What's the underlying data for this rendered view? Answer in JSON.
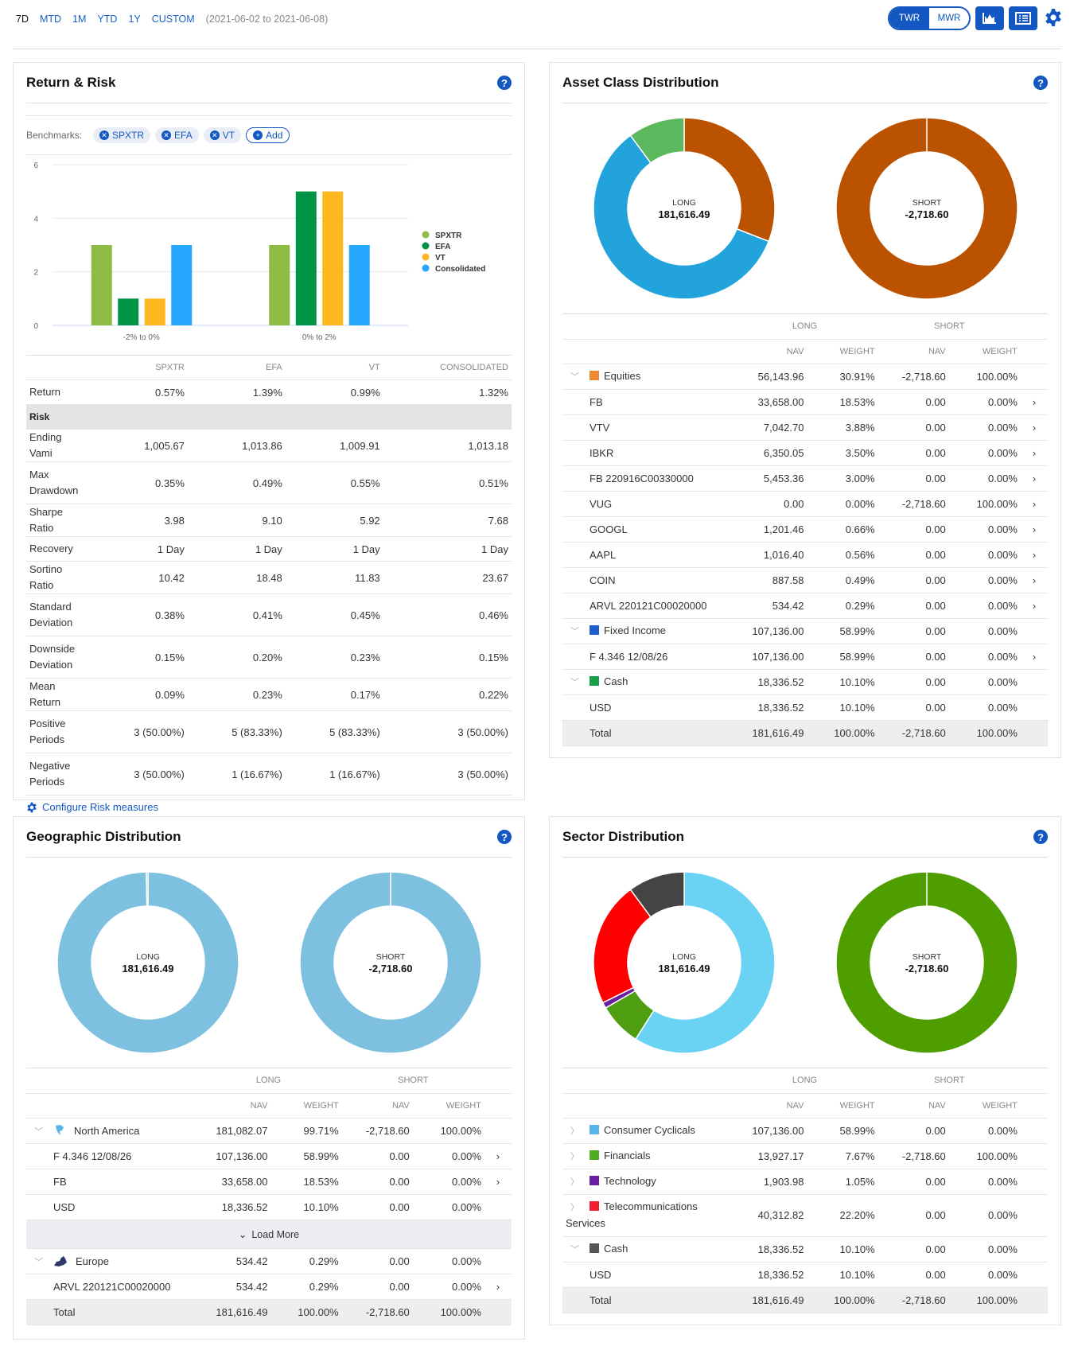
{
  "topbar": {
    "periods": [
      "7D",
      "MTD",
      "1M",
      "YTD",
      "1Y",
      "CUSTOM"
    ],
    "active": "7D",
    "range": "(2021-06-02 to 2021-06-08)",
    "twr": "TWR",
    "mwr": "MWR",
    "selected_mode": "TWR"
  },
  "colors": {
    "accent": "#1357c2"
  },
  "return_risk": {
    "title": "Return & Risk",
    "benchmarks_label": "Benchmarks:",
    "benchmarks": [
      "SPXTR",
      "EFA",
      "VT"
    ],
    "add_label": "Add",
    "configure_label": "Configure Risk measures",
    "columns": [
      "SPXTR",
      "EFA",
      "VT",
      "CONSOLIDATED"
    ],
    "rows": [
      {
        "label": "Return",
        "values": [
          "0.57%",
          "1.39%",
          "0.99%",
          "1.32%"
        ]
      },
      {
        "label": "Risk",
        "section": true
      },
      {
        "label": "Ending Vami",
        "values": [
          "1,005.67",
          "1,013.86",
          "1,009.91",
          "1,013.18"
        ]
      },
      {
        "label": "Max Drawdown",
        "values": [
          "0.35%",
          "0.49%",
          "0.55%",
          "0.51%"
        ],
        "tall": true
      },
      {
        "label": "Sharpe Ratio",
        "values": [
          "3.98",
          "9.10",
          "5.92",
          "7.68"
        ]
      },
      {
        "label": "Recovery",
        "values": [
          "1 Day",
          "1 Day",
          "1 Day",
          "1 Day"
        ]
      },
      {
        "label": "Sortino Ratio",
        "values": [
          "10.42",
          "18.48",
          "11.83",
          "23.67"
        ]
      },
      {
        "label": "Standard Deviation",
        "values": [
          "0.38%",
          "0.41%",
          "0.45%",
          "0.46%"
        ],
        "tall": true
      },
      {
        "label": "Downside Deviation",
        "values": [
          "0.15%",
          "0.20%",
          "0.23%",
          "0.15%"
        ],
        "tall": true
      },
      {
        "label": "Mean Return",
        "values": [
          "0.09%",
          "0.23%",
          "0.17%",
          "0.22%"
        ]
      },
      {
        "label": "Positive Periods",
        "values": [
          "3 (50.00%)",
          "5 (83.33%)",
          "5 (83.33%)",
          "3 (50.00%)"
        ],
        "tall": true
      },
      {
        "label": "Negative Periods",
        "values": [
          "3 (50.00%)",
          "1 (16.67%)",
          "1 (16.67%)",
          "3 (50.00%)"
        ],
        "tall": true
      }
    ]
  },
  "chart_data": {
    "type": "bar",
    "categories": [
      "-2% to 0%",
      "0% to 2%"
    ],
    "ylim": [
      0,
      6
    ],
    "yticks": [
      0,
      2,
      4,
      6
    ],
    "grid": true,
    "legend": "right",
    "series": [
      {
        "name": "SPXTR",
        "color": "#8fba44",
        "values": [
          3,
          3
        ]
      },
      {
        "name": "EFA",
        "color": "#009245",
        "values": [
          1,
          5
        ]
      },
      {
        "name": "VT",
        "color": "#fdb71f",
        "values": [
          1,
          5
        ]
      },
      {
        "name": "Consolidated",
        "color": "#26a6fc",
        "values": [
          3,
          3
        ]
      }
    ]
  },
  "dist_headers": {
    "long": "LONG",
    "short": "SHORT",
    "nav": "NAV",
    "weight": "WEIGHT"
  },
  "asset_class": {
    "title": "Asset Class Distribution",
    "long_donut": {
      "label": "LONG",
      "value": "181,616.49",
      "slices": [
        {
          "pct": 30.91,
          "color": "#bb5200"
        },
        {
          "pct": 58.99,
          "color": "#23a3dc"
        },
        {
          "pct": 10.1,
          "color": "#5cb85c"
        }
      ]
    },
    "short_donut": {
      "label": "SHORT",
      "value": "-2,718.60",
      "slices": [
        {
          "pct": 100,
          "color": "#bb5200"
        }
      ]
    },
    "rows": [
      {
        "type": "group",
        "open": true,
        "name": "Equities",
        "color": "#f08a30",
        "v": [
          "56,143.96",
          "30.91%",
          "-2,718.60",
          "100.00%"
        ]
      },
      {
        "type": "child",
        "name": "FB",
        "v": [
          "33,658.00",
          "18.53%",
          "0.00",
          "0.00%"
        ],
        "arrow": true
      },
      {
        "type": "child",
        "name": "VTV",
        "v": [
          "7,042.70",
          "3.88%",
          "0.00",
          "0.00%"
        ],
        "arrow": true
      },
      {
        "type": "child",
        "name": "IBKR",
        "v": [
          "6,350.05",
          "3.50%",
          "0.00",
          "0.00%"
        ],
        "arrow": true
      },
      {
        "type": "child",
        "name": "FB 220916C00330000",
        "v": [
          "5,453.36",
          "3.00%",
          "0.00",
          "0.00%"
        ],
        "arrow": true
      },
      {
        "type": "child",
        "name": "VUG",
        "v": [
          "0.00",
          "0.00%",
          "-2,718.60",
          "100.00%"
        ],
        "arrow": true
      },
      {
        "type": "child",
        "name": "GOOGL",
        "v": [
          "1,201.46",
          "0.66%",
          "0.00",
          "0.00%"
        ],
        "arrow": true
      },
      {
        "type": "child",
        "name": "AAPL",
        "v": [
          "1,016.40",
          "0.56%",
          "0.00",
          "0.00%"
        ],
        "arrow": true
      },
      {
        "type": "child",
        "name": "COIN",
        "v": [
          "887.58",
          "0.49%",
          "0.00",
          "0.00%"
        ],
        "arrow": true
      },
      {
        "type": "child",
        "name": "ARVL 220121C00020000",
        "v": [
          "534.42",
          "0.29%",
          "0.00",
          "0.00%"
        ],
        "arrow": true
      },
      {
        "type": "group",
        "open": true,
        "name": "Fixed Income",
        "color": "#1f5fcc",
        "v": [
          "107,136.00",
          "58.99%",
          "0.00",
          "0.00%"
        ]
      },
      {
        "type": "child",
        "name": "F 4.346 12/08/26",
        "v": [
          "107,136.00",
          "58.99%",
          "0.00",
          "0.00%"
        ],
        "arrow": true
      },
      {
        "type": "group",
        "open": true,
        "name": "Cash",
        "color": "#1a9e4a",
        "v": [
          "18,336.52",
          "10.10%",
          "0.00",
          "0.00%"
        ]
      },
      {
        "type": "child",
        "name": "USD",
        "v": [
          "18,336.52",
          "10.10%",
          "0.00",
          "0.00%"
        ]
      },
      {
        "type": "total",
        "name": "Total",
        "v": [
          "181,616.49",
          "100.00%",
          "-2,718.60",
          "100.00%"
        ]
      }
    ]
  },
  "geographic": {
    "title": "Geographic Distribution",
    "long_donut": {
      "label": "LONG",
      "value": "181,616.49",
      "slices": [
        {
          "pct": 99.71,
          "color": "#7ec0e0"
        },
        {
          "pct": 0.29,
          "color": "#7ec0e0"
        }
      ]
    },
    "short_donut": {
      "label": "SHORT",
      "value": "-2,718.60",
      "slices": [
        {
          "pct": 100,
          "color": "#7ec0e0"
        }
      ]
    },
    "rows": [
      {
        "type": "group",
        "open": true,
        "name": "North America",
        "icon": "north-america-icon",
        "v": [
          "181,082.07",
          "99.71%",
          "-2,718.60",
          "100.00%"
        ]
      },
      {
        "type": "child",
        "name": "F 4.346 12/08/26",
        "v": [
          "107,136.00",
          "58.99%",
          "0.00",
          "0.00%"
        ],
        "arrow": true
      },
      {
        "type": "child",
        "name": "FB",
        "v": [
          "33,658.00",
          "18.53%",
          "0.00",
          "0.00%"
        ],
        "arrow": true
      },
      {
        "type": "child",
        "name": "USD",
        "v": [
          "18,336.52",
          "10.10%",
          "0.00",
          "0.00%"
        ]
      },
      {
        "type": "loadmore",
        "name": "Load More"
      },
      {
        "type": "group",
        "open": true,
        "name": "Europe",
        "icon": "europe-icon",
        "v": [
          "534.42",
          "0.29%",
          "0.00",
          "0.00%"
        ]
      },
      {
        "type": "child",
        "name": "ARVL 220121C00020000",
        "v": [
          "534.42",
          "0.29%",
          "0.00",
          "0.00%"
        ],
        "arrow": true
      },
      {
        "type": "total",
        "name": "Total",
        "v": [
          "181,616.49",
          "100.00%",
          "-2,718.60",
          "100.00%"
        ]
      }
    ]
  },
  "sector": {
    "title": "Sector Distribution",
    "long_donut": {
      "label": "LONG",
      "value": "181,616.49",
      "slices": [
        {
          "pct": 58.99,
          "color": "#6ad3f4"
        },
        {
          "pct": 7.67,
          "color": "#4f9e12"
        },
        {
          "pct": 1.05,
          "color": "#6a1fa0"
        },
        {
          "pct": 22.2,
          "color": "#ff0000"
        },
        {
          "pct": 10.1,
          "color": "#444444"
        }
      ]
    },
    "short_donut": {
      "label": "SHORT",
      "value": "-2,718.60",
      "slices": [
        {
          "pct": 100,
          "color": "#4f9e00"
        }
      ]
    },
    "rows": [
      {
        "type": "group",
        "open": false,
        "name": "Consumer Cyclicals",
        "color": "#5ab4e8",
        "v": [
          "107,136.00",
          "58.99%",
          "0.00",
          "0.00%"
        ]
      },
      {
        "type": "group",
        "open": false,
        "name": "Financials",
        "color": "#4fae1f",
        "v": [
          "13,927.17",
          "7.67%",
          "-2,718.60",
          "100.00%"
        ]
      },
      {
        "type": "group",
        "open": false,
        "name": "Technology",
        "color": "#6a1fa0",
        "v": [
          "1,903.98",
          "1.05%",
          "0.00",
          "0.00%"
        ]
      },
      {
        "type": "group",
        "open": false,
        "name": "Telecommunications Services",
        "color": "#ee2030",
        "v": [
          "40,312.82",
          "22.20%",
          "0.00",
          "0.00%"
        ],
        "tall": true
      },
      {
        "type": "group",
        "open": true,
        "name": "Cash",
        "color": "#555555",
        "v": [
          "18,336.52",
          "10.10%",
          "0.00",
          "0.00%"
        ]
      },
      {
        "type": "child",
        "name": "USD",
        "v": [
          "18,336.52",
          "10.10%",
          "0.00",
          "0.00%"
        ]
      },
      {
        "type": "total",
        "name": "Total",
        "v": [
          "181,616.49",
          "100.00%",
          "-2,718.60",
          "100.00%"
        ]
      }
    ]
  }
}
